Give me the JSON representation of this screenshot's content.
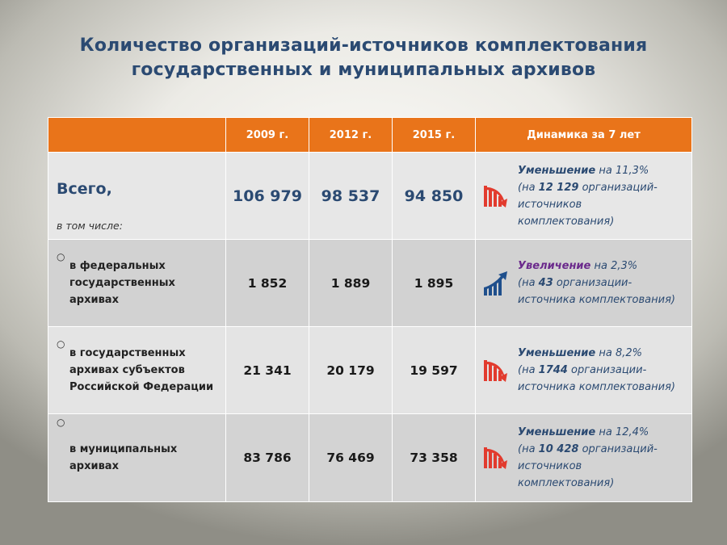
{
  "title": {
    "line1": "Количество организаций-источников комплектования",
    "line2": "государственных и муниципальных архивов"
  },
  "table": {
    "headers": [
      "",
      "2009 г.",
      "2012 г.",
      "2015 г.",
      "Динамика за 7 лет"
    ],
    "total": {
      "label": "Всего,",
      "sublabel": "в том числе:",
      "values": [
        "106 979",
        "98 537",
        "94 850"
      ],
      "dynamics": {
        "trend": "down",
        "icon": "decrease-chart-icon",
        "keyword": "Уменьшение",
        "pct_prefix": " на ",
        "pct": "11,3%",
        "line2_prefix": "(на ",
        "count": "12 129",
        "line2_suffix": " организаций-",
        "line3": "источников",
        "line4": "комплектования)"
      }
    },
    "rows": [
      {
        "bullet": "○",
        "label_lines": [
          "в федеральных",
          "государственных",
          "архивах"
        ],
        "values": [
          "1 852",
          "1 889",
          "1 895"
        ],
        "dynamics": {
          "trend": "up",
          "icon": "increase-chart-icon",
          "keyword": "Увеличение",
          "pct_prefix": " на ",
          "pct": "2,3%",
          "line2_prefix": "(на ",
          "count": "43",
          "line2_suffix": " организации-",
          "line3": "источника комплектования)"
        }
      },
      {
        "bullet": "○",
        "label_lines": [
          "в государственных",
          "архивах субъектов",
          "Российской Федерации"
        ],
        "values": [
          "21 341",
          "20 179",
          "19 597"
        ],
        "dynamics": {
          "trend": "down",
          "icon": "decrease-chart-icon",
          "keyword": "Уменьшение",
          "pct_prefix": " на ",
          "pct": "8,2%",
          "line2_prefix": "(на ",
          "count": "1744",
          "line2_suffix": " организации-",
          "line3": "источника комплектования)"
        }
      },
      {
        "bullet": "○",
        "label_lines": [
          "в муниципальных",
          "архивах"
        ],
        "values": [
          "83 786",
          "76 469",
          "73 358"
        ],
        "dynamics": {
          "trend": "down",
          "icon": "decrease-chart-icon",
          "keyword": "Уменьшение",
          "pct_prefix": " на ",
          "pct": "12,4%",
          "line2_prefix": "(на ",
          "count": "10 428",
          "line2_suffix": " организаций-",
          "line3": "источников",
          "line4": "комплектования)"
        }
      }
    ]
  },
  "colors": {
    "header_bg": "#e9741a",
    "title": "#2b4a72",
    "down_icon": "#e23b2e",
    "up_icon": "#1f4f8c",
    "up_keyword": "#6b2a8c"
  }
}
